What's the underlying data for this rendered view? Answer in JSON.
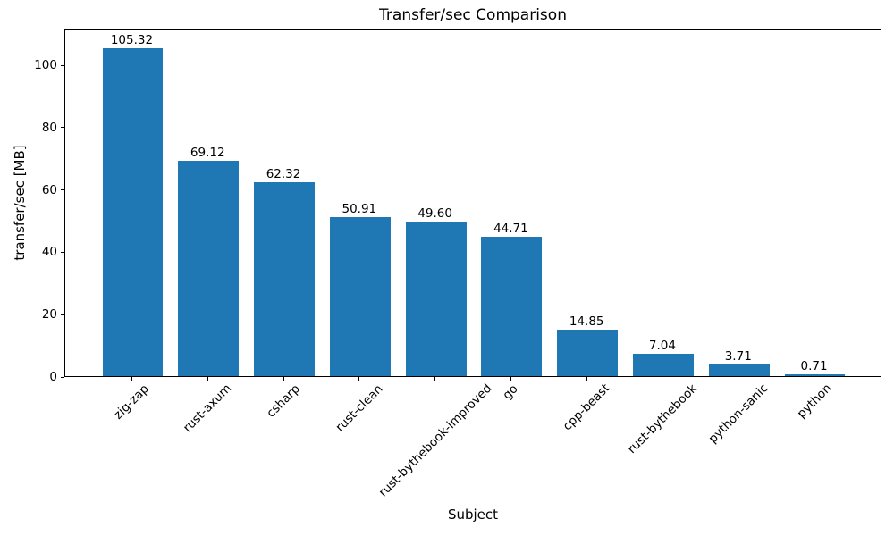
{
  "chart_data": {
    "type": "bar",
    "title": "Transfer/sec Comparison",
    "xlabel": "Subject",
    "ylabel": "transfer/sec [MB]",
    "categories": [
      "zig-zap",
      "rust-axum",
      "csharp",
      "rust-clean",
      "rust-bythebook-improved",
      "go",
      "cpp-beast",
      "rust-bythebook",
      "python-sanic",
      "python"
    ],
    "values": [
      105.32,
      69.12,
      62.32,
      50.91,
      49.6,
      44.71,
      14.85,
      7.04,
      3.71,
      0.71
    ],
    "bar_labels": [
      "105.32",
      "69.12",
      "62.32",
      "50.91",
      "49.60",
      "44.71",
      "14.85",
      "7.04",
      "3.71",
      "0.71"
    ],
    "yticks": [
      0,
      20,
      40,
      60,
      80,
      100
    ],
    "ylim": [
      0,
      111.5
    ],
    "grid": false,
    "legend": null,
    "bar_color": "#1f77b4",
    "text_color": "#000000",
    "background_color": "#ffffff"
  }
}
